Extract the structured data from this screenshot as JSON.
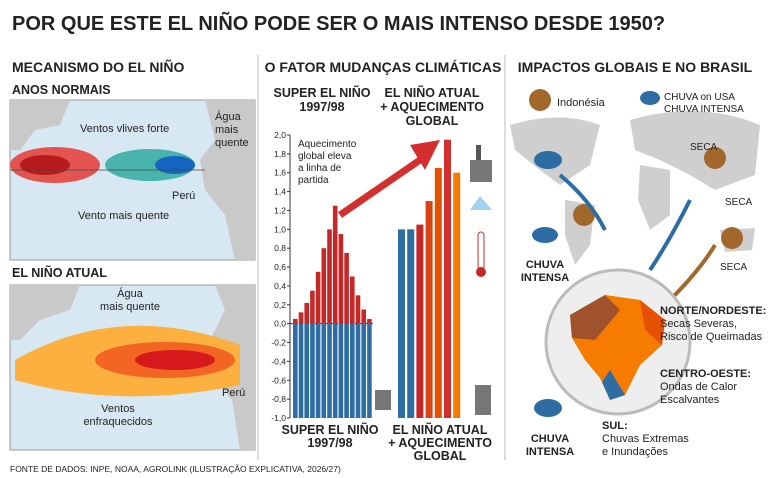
{
  "title": "POR QUE ESTE EL NIÑO PODE SER O MAIS INTENSO DESDE 1950?",
  "left": {
    "heading": "MECANISMO DO EL NIÑO",
    "normal": {
      "title": "ANOS NORMAIS",
      "winds": "Ventos vlives forte",
      "water": [
        "Água",
        "mais",
        "quente"
      ],
      "peru": "Perú",
      "warm_wind": "Vento mais quente"
    },
    "current": {
      "title": "EL NIÑO ATUAL",
      "water": [
        "Água",
        "mais quente"
      ],
      "winds": [
        "Ventos",
        "enfraquecidos"
      ],
      "peru": "Perú"
    }
  },
  "middle": {
    "heading": "O FATOR MUDANÇAS CLIMÁTICAS",
    "chart": {
      "type": "bar",
      "ylim": [
        -1.0,
        2.0
      ],
      "yticks": [
        {
          "value": 2.0,
          "label": "2,0"
        },
        {
          "value": 1.8,
          "label": "1,8"
        },
        {
          "value": 1.6,
          "label": "1,6"
        },
        {
          "value": 1.4,
          "label": "1,4"
        },
        {
          "value": 1.2,
          "label": "1,2"
        },
        {
          "value": 1.0,
          "label": "1,0"
        },
        {
          "value": 0.8,
          "label": "0,8"
        },
        {
          "value": 0.6,
          "label": "0,6"
        },
        {
          "value": 0.4,
          "label": "0,4"
        },
        {
          "value": 0.2,
          "label": "0,2"
        },
        {
          "value": 0.0,
          "label": "0,0"
        },
        {
          "value": -0.2,
          "label": "-0,2"
        },
        {
          "value": -0.4,
          "label": "-0,4"
        },
        {
          "value": -0.6,
          "label": "-0,6"
        },
        {
          "value": -0.8,
          "label": "-0,8"
        },
        {
          "value": -1.0,
          "label": "-1,0"
        }
      ],
      "left_group": {
        "top_label": [
          "SUPER EL NIÑO",
          "1997/98"
        ],
        "bottom_label": [
          "SUPER EL NIÑO",
          "1997/98"
        ],
        "values": [
          0.05,
          0.12,
          0.22,
          0.35,
          0.55,
          0.8,
          1.0,
          1.25,
          0.95,
          0.75,
          0.5,
          0.3,
          0.15,
          0.05
        ],
        "color": "#c62828",
        "below": [
          -1.0,
          -1.0,
          -1.0,
          -1.0,
          -1.0,
          -1.0,
          -1.0,
          -1.0,
          -1.0,
          -1.0,
          -1.0,
          -1.0,
          -1.0,
          -1.0
        ],
        "below_color": "#2e6da4"
      },
      "right_group": {
        "top_label": [
          "EL NIÑO ATUAL",
          "+ AQUECIMENTO",
          "GLOBAL"
        ],
        "bottom_label": [
          "EL NIÑO ATUAL",
          "+ AQUECIMENTO",
          "GLOBAL"
        ],
        "values": [
          1.0,
          1.0,
          1.05,
          1.3,
          1.65,
          1.95,
          1.6
        ],
        "colors": [
          "#2e6da4",
          "#2e6da4",
          "#c62828",
          "#d84315",
          "#e65100",
          "#d32f2f",
          "#f57c00"
        ]
      },
      "annotation": [
        "Aquecimento",
        "global eleva",
        "a linha de",
        "partida"
      ]
    }
  },
  "right": {
    "heading": "IMPACTOS GLOBAIS E NO BRASIL",
    "legend": {
      "indonesia": "Indonésia",
      "rain": [
        "CHUVA on USA",
        "CHUVA INTENSA"
      ]
    },
    "seca": [
      "SECA",
      "SECA",
      "SECA"
    ],
    "rain_usa": [
      "CHUVA",
      "INTENSA"
    ],
    "rain_south": [
      "CHUVA",
      "INTENSA"
    ],
    "regions": [
      {
        "name": "NORTE/NORDESTE:",
        "lines": [
          "Secas Severas,",
          "Risco de Queimadas"
        ]
      },
      {
        "name": "CENTRO-OESTE:",
        "lines": [
          "Ondas de Calor",
          "Escalvantes"
        ]
      },
      {
        "name": "SUL:",
        "lines": [
          "Chuvas Extremas",
          "e Inundações"
        ]
      }
    ]
  },
  "footer": "FONTE DE DADOS: INPE, NOAA, AGROLINK (ILUSTRAÇÃO EXPLICATIVA, 2026/27)"
}
